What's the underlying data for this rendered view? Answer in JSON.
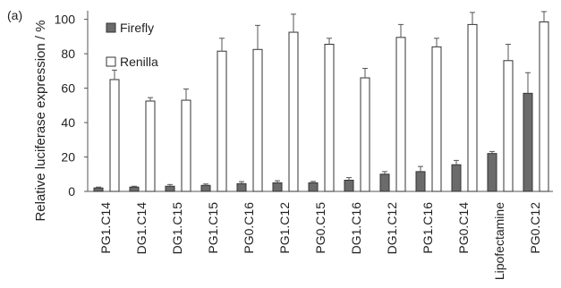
{
  "chart_data": {
    "type": "bar",
    "panel_label": "(a)",
    "ylabel": "Relative luciferase expression / %",
    "xlabel": "",
    "ylim": [
      0,
      105
    ],
    "yticks": [
      0,
      20,
      40,
      60,
      80,
      100
    ],
    "categories": [
      "PG1.C14",
      "DG1.C14",
      "DG1.C15",
      "PG1.C15",
      "PG0.C16",
      "PG1.C12",
      "PG0.C15",
      "DG1.C16",
      "DG1.C12",
      "PG1.C16",
      "PG0.C14",
      "Lipofectamine",
      "PG0.C12"
    ],
    "series": [
      {
        "name": "Firefly",
        "color": "#6b6b6b",
        "values": [
          2,
          2.5,
          3,
          3.5,
          4.5,
          5,
          5,
          6.5,
          10,
          11.5,
          15.5,
          22,
          57
        ],
        "errors": [
          0.5,
          0.5,
          1,
          0.8,
          1.2,
          1.2,
          0.8,
          1.5,
          1.5,
          3,
          2.5,
          1.2,
          12
        ]
      },
      {
        "name": "Renilla",
        "color": "#ffffff",
        "values": [
          65,
          52.5,
          53,
          81.5,
          82.5,
          92.5,
          85.5,
          66,
          89.5,
          84,
          97,
          76,
          98.5
        ],
        "errors": [
          5.5,
          2,
          6.5,
          7.5,
          14,
          10.5,
          3.5,
          5.5,
          7.5,
          5,
          7,
          9.5,
          6
        ]
      }
    ],
    "legend_position": "top-left",
    "grid": false
  }
}
